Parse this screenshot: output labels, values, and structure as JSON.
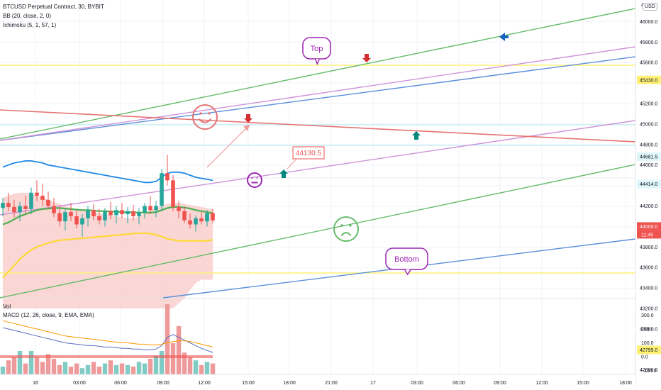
{
  "header": {
    "symbol_line": "BTCUSD Perpetual Contract, 30, BYBIT",
    "bb_line": "BB (20, close, 2, 0)",
    "ichimoku_line": "Ichimoku (5, 1, 57, 1)",
    "vol_label": "Vol",
    "macd_line": "MACD (12, 26, close, 9, EMA, EMA)",
    "currency_badge": "USD"
  },
  "colors": {
    "up": "#26a69a",
    "down": "#ef5350",
    "bb_band": "#1e88e5",
    "bb_mid": "#4caf50",
    "yellow_line": "#fdd835",
    "cloud": "#f8c9c7",
    "green_line": "#66bb6a",
    "blue_line": "#5b8fd9",
    "pink_line": "#ce93d8",
    "red_line": "#e57373",
    "cyan_line": "#b2ebf2",
    "yellow_hline": "#fff176",
    "purple": "#9c27b0"
  },
  "chart_data": {
    "type": "candlestick",
    "price_ticks": [
      "46000.0",
      "45800.0",
      "45600.0",
      "45200.0",
      "45000.0",
      "44800.0",
      "44600.0",
      "44200.0",
      "43800.0",
      "43600.0",
      "43400.0",
      "43200.0",
      "43000.0",
      "42600.0"
    ],
    "price_top_partial": "4",
    "level_labels": [
      {
        "value": "45430.0",
        "bg": "#fff176",
        "fg": "#131722"
      },
      {
        "value": "44681.5",
        "bg": "#e0f7fa",
        "fg": "#131722"
      },
      {
        "value": "44414.0",
        "bg": "#e0f7fa",
        "fg": "#131722"
      },
      {
        "value": "44000.0",
        "bg": "#ef5350",
        "fg": "#ffffff"
      },
      {
        "value": "42795.0",
        "bg": "#fff176",
        "fg": "#131722"
      }
    ],
    "countdown": "11:45",
    "time_ticks": [
      "16",
      "03:00",
      "06:00",
      "09:00",
      "12:00",
      "15:00",
      "18:00",
      "21:00",
      "17",
      "03:00",
      "06:00",
      "09:00",
      "12:00",
      "15:00",
      "18:00"
    ],
    "macd_ticks": [
      "300.0",
      "200.0",
      "100.0",
      "0.0",
      "−100.0"
    ],
    "candles": [
      {
        "o": 44180,
        "h": 44280,
        "l": 44100,
        "c": 44230
      },
      {
        "o": 44230,
        "h": 44330,
        "l": 44150,
        "c": 44190
      },
      {
        "o": 44190,
        "h": 44260,
        "l": 44090,
        "c": 44140
      },
      {
        "o": 44140,
        "h": 44240,
        "l": 44050,
        "c": 44200
      },
      {
        "o": 44200,
        "h": 44300,
        "l": 44130,
        "c": 44170
      },
      {
        "o": 44170,
        "h": 44380,
        "l": 44120,
        "c": 44330
      },
      {
        "o": 44330,
        "h": 44450,
        "l": 44250,
        "c": 44300
      },
      {
        "o": 44300,
        "h": 44420,
        "l": 44200,
        "c": 44260
      },
      {
        "o": 44260,
        "h": 44340,
        "l": 44170,
        "c": 44200
      },
      {
        "o": 44200,
        "h": 44280,
        "l": 44090,
        "c": 44130
      },
      {
        "o": 44130,
        "h": 44200,
        "l": 44000,
        "c": 44050
      },
      {
        "o": 44050,
        "h": 44180,
        "l": 43960,
        "c": 44140
      },
      {
        "o": 44140,
        "h": 44230,
        "l": 44050,
        "c": 44100
      },
      {
        "o": 44100,
        "h": 44160,
        "l": 43980,
        "c": 44020
      },
      {
        "o": 44020,
        "h": 44120,
        "l": 43900,
        "c": 44080
      },
      {
        "o": 44080,
        "h": 44200,
        "l": 44000,
        "c": 44160
      },
      {
        "o": 44160,
        "h": 44220,
        "l": 44060,
        "c": 44100
      },
      {
        "o": 44100,
        "h": 44170,
        "l": 44020,
        "c": 44060
      },
      {
        "o": 44060,
        "h": 44180,
        "l": 44000,
        "c": 44150
      },
      {
        "o": 44150,
        "h": 44240,
        "l": 44070,
        "c": 44110
      },
      {
        "o": 44110,
        "h": 44200,
        "l": 44030,
        "c": 44160
      },
      {
        "o": 44160,
        "h": 44230,
        "l": 44080,
        "c": 44120
      },
      {
        "o": 44120,
        "h": 44190,
        "l": 44030,
        "c": 44150
      },
      {
        "o": 44150,
        "h": 44210,
        "l": 44060,
        "c": 44100
      },
      {
        "o": 44100,
        "h": 44180,
        "l": 44020,
        "c": 44140
      },
      {
        "o": 44140,
        "h": 44230,
        "l": 44080,
        "c": 44200
      },
      {
        "o": 44200,
        "h": 44300,
        "l": 44120,
        "c": 44160
      },
      {
        "o": 44160,
        "h": 44250,
        "l": 44090,
        "c": 44200
      },
      {
        "o": 44200,
        "h": 44560,
        "l": 44150,
        "c": 44520
      },
      {
        "o": 44520,
        "h": 44700,
        "l": 44400,
        "c": 44450
      },
      {
        "o": 44450,
        "h": 44500,
        "l": 44150,
        "c": 44190
      },
      {
        "o": 44190,
        "h": 44250,
        "l": 44080,
        "c": 44150
      },
      {
        "o": 44150,
        "h": 44200,
        "l": 44030,
        "c": 44060
      },
      {
        "o": 44060,
        "h": 44130,
        "l": 43980,
        "c": 44020
      },
      {
        "o": 44020,
        "h": 44110,
        "l": 43950,
        "c": 44080
      },
      {
        "o": 44080,
        "h": 44140,
        "l": 44020,
        "c": 44050
      },
      {
        "o": 44050,
        "h": 44160,
        "l": 44000,
        "c": 44130
      },
      {
        "o": 44130,
        "h": 44170,
        "l": 44030,
        "c": 44060
      }
    ],
    "bb_upper": [
      44580,
      44600,
      44620,
      44630,
      44640,
      44640,
      44630,
      44620,
      44600,
      44590,
      44580,
      44570,
      44560,
      44550,
      44540,
      44530,
      44520,
      44510,
      44500,
      44490,
      44480,
      44470,
      44460,
      44450,
      44440,
      44430,
      44430,
      44440,
      44480,
      44520,
      44530,
      44530,
      44520,
      44500,
      44480,
      44470,
      44460,
      44450
    ],
    "bb_middle": [
      44020,
      44040,
      44070,
      44100,
      44120,
      44140,
      44160,
      44170,
      44175,
      44180,
      44180,
      44175,
      44170,
      44165,
      44160,
      44160,
      44155,
      44150,
      44150,
      44145,
      44145,
      44140,
      44140,
      44140,
      44135,
      44135,
      44135,
      44140,
      44160,
      44180,
      44190,
      44190,
      44185,
      44175,
      44160,
      44150,
      44140,
      44130
    ],
    "bb_lower": [
      43500,
      43560,
      43620,
      43680,
      43730,
      43770,
      43800,
      43820,
      43840,
      43855,
      43865,
      43870,
      43875,
      43880,
      43885,
      43890,
      43895,
      43900,
      43905,
      43910,
      43915,
      43920,
      43925,
      43930,
      43935,
      43935,
      43930,
      43920,
      43900,
      43880,
      43870,
      43860,
      43860,
      43860,
      43860,
      43860,
      43860,
      43870
    ],
    "cloud_top": [
      44280,
      44300,
      44320,
      44330,
      44330,
      44320,
      44300,
      44280,
      44260,
      44240,
      44220,
      44200,
      44180,
      44170,
      44160,
      44150,
      44140,
      44130,
      44120,
      44110,
      44100,
      44090,
      44080,
      44080,
      44100,
      44130,
      44160,
      44180,
      44200,
      44220,
      44230,
      44230,
      44220,
      44210,
      44200,
      44190,
      44180,
      44170
    ],
    "cloud_bottom": [
      43200,
      43200,
      43200,
      43200,
      43200,
      43200,
      43200,
      43200,
      43200,
      43200,
      43200,
      43200,
      43200,
      43200,
      43200,
      43200,
      43200,
      43200,
      43200,
      43200,
      43200,
      43200,
      43200,
      43200,
      43200,
      43200,
      43200,
      43200,
      43200,
      43200,
      43200,
      43250,
      43300,
      43380,
      43450,
      43480,
      43480,
      43480
    ],
    "volume": [
      0.1,
      0.18,
      0.22,
      0.3,
      0.14,
      0.3,
      0.22,
      0.16,
      0.26,
      0.2,
      0.12,
      0.16,
      0.1,
      0.14,
      0.08,
      0.12,
      0.16,
      0.1,
      0.14,
      0.18,
      0.12,
      0.14,
      0.12,
      0.1,
      0.16,
      0.14,
      0.2,
      0.24,
      0.3,
      0.9,
      0.4,
      0.62,
      0.28,
      0.22,
      0.18,
      0.12,
      0.16,
      0.14
    ],
    "macd": [
      210,
      200,
      190,
      180,
      170,
      160,
      150,
      140,
      130,
      120,
      110,
      100,
      95,
      90,
      85,
      80,
      80,
      75,
      70,
      70,
      65,
      60,
      60,
      55,
      55,
      50,
      50,
      55,
      80,
      140,
      160,
      140,
      120,
      100,
      80,
      60,
      45,
      30
    ],
    "macd_signal": [
      260,
      250,
      240,
      230,
      220,
      210,
      200,
      190,
      180,
      170,
      160,
      150,
      145,
      140,
      135,
      130,
      125,
      120,
      115,
      110,
      105,
      100,
      100,
      95,
      90,
      90,
      85,
      85,
      90,
      100,
      110,
      115,
      115,
      110,
      100,
      90,
      80,
      70
    ],
    "annotations": [
      {
        "type": "callout",
        "text": "Top"
      },
      {
        "type": "callout",
        "text": "Bottom"
      },
      {
        "type": "price_label",
        "text": "44130.5"
      }
    ],
    "grid": true,
    "ylim": [
      42500,
      46200
    ]
  }
}
